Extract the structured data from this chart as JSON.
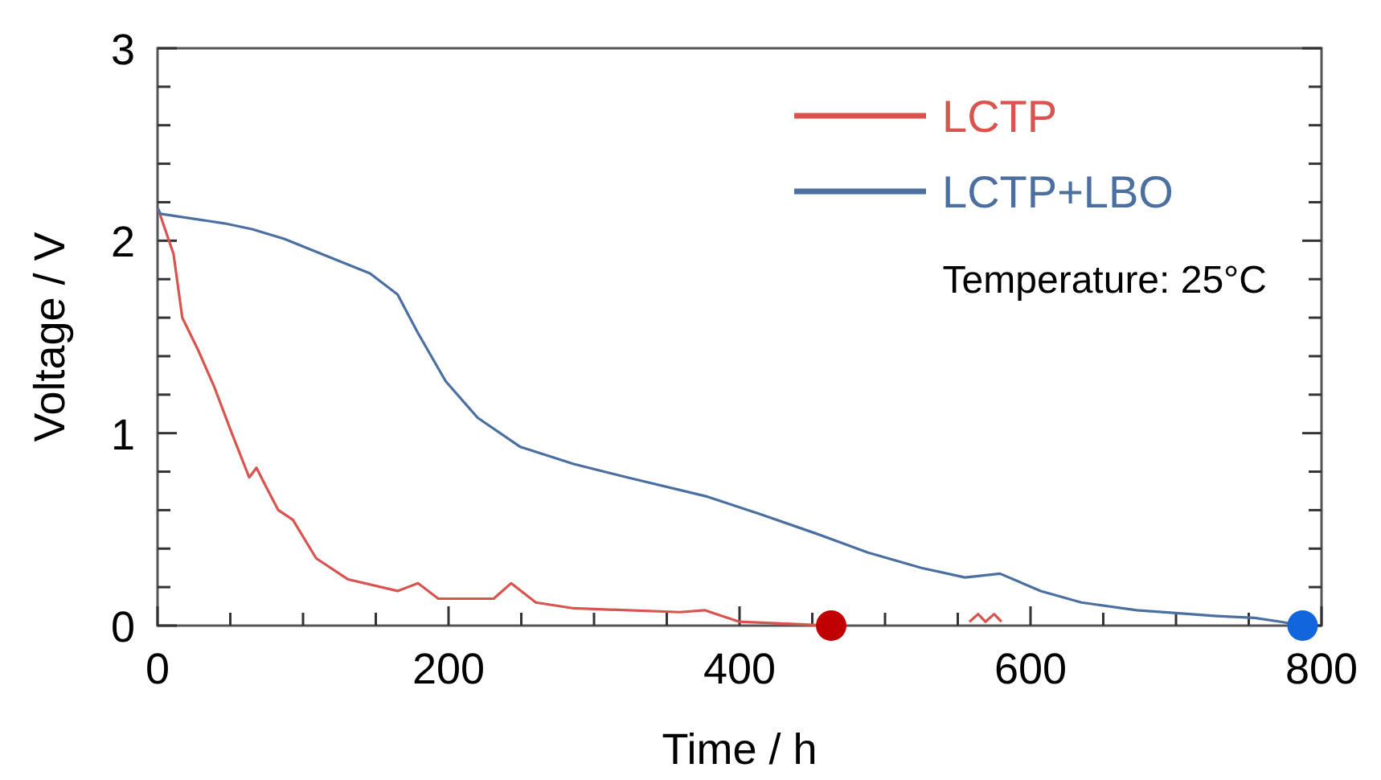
{
  "chart_data": {
    "type": "line",
    "xlabel": "Time / h",
    "ylabel": "Voltage / V",
    "xlim": [
      0,
      800
    ],
    "ylim": [
      0,
      3
    ],
    "xticks": [
      0,
      {
        "value": 50,
        "label": null
      },
      {
        "value": 100,
        "label": null
      },
      {
        "value": 150,
        "label": null
      },
      200,
      {
        "value": 250,
        "label": null
      },
      {
        "value": 300,
        "label": null
      },
      {
        "value": 350,
        "label": null
      },
      400,
      {
        "value": 450,
        "label": null
      },
      {
        "value": 500,
        "label": null
      },
      {
        "value": 550,
        "label": null
      },
      600,
      {
        "value": 650,
        "label": null
      },
      {
        "value": 700,
        "label": null
      },
      {
        "value": 750,
        "label": null
      },
      800
    ],
    "yticks": [
      0,
      {
        "value": 0.2,
        "label": null
      },
      {
        "value": 0.4,
        "label": null
      },
      {
        "value": 0.6,
        "label": null
      },
      {
        "value": 0.8,
        "label": null
      },
      1,
      {
        "value": 1.2,
        "label": null
      },
      {
        "value": 1.4,
        "label": null
      },
      {
        "value": 1.6,
        "label": null
      },
      {
        "value": 1.8,
        "label": null
      },
      2,
      {
        "value": 2.2,
        "label": null
      },
      {
        "value": 2.4,
        "label": null
      },
      {
        "value": 2.6,
        "label": null
      },
      {
        "value": 2.8,
        "label": null
      },
      3
    ],
    "grid": false,
    "legend": "top right",
    "marker": "none",
    "line_style": "solid",
    "annotations": [
      "Temperature: 25°C"
    ],
    "series": [
      {
        "name": "LCTP",
        "color": "#d9534f",
        "x": [
          0,
          2,
          11,
          17,
          28,
          39,
          50,
          63,
          68,
          74,
          83,
          93,
          109,
          131,
          165,
          179,
          193,
          231,
          243,
          260,
          286,
          359,
          376,
          400,
          463
        ],
        "values": [
          2.17,
          2.13,
          1.93,
          1.6,
          1.43,
          1.24,
          1.02,
          0.77,
          0.82,
          0.73,
          0.6,
          0.55,
          0.35,
          0.24,
          0.18,
          0.22,
          0.14,
          0.14,
          0.22,
          0.12,
          0.09,
          0.07,
          0.08,
          0.02,
          0
        ]
      },
      {
        "color": "#d9534f",
        "x": [
          558,
          564,
          569,
          575,
          580
        ],
        "values": [
          0.02,
          0.06,
          0.02,
          0.06,
          0.02
        ]
      },
      {
        "name": "LCTP+LBO",
        "color": "#4a6fa0",
        "x": [
          0,
          2,
          46,
          65,
          87,
          113,
          146,
          165,
          179,
          198,
          220,
          249,
          286,
          323,
          378,
          414,
          452,
          488,
          525,
          555,
          579,
          607,
          635,
          673,
          728,
          754,
          772,
          787
        ],
        "values": [
          2.17,
          2.14,
          2.09,
          2.06,
          2.01,
          1.93,
          1.83,
          1.72,
          1.52,
          1.27,
          1.08,
          0.93,
          0.84,
          0.77,
          0.67,
          0.58,
          0.48,
          0.38,
          0.3,
          0.25,
          0.27,
          0.18,
          0.12,
          0.08,
          0.05,
          0.04,
          0.02,
          0
        ]
      },
      {
        "type": "scatter",
        "color": "#c00000",
        "x": [
          463
        ],
        "values": [
          0
        ],
        "marker": "circle"
      },
      {
        "type": "scatter",
        "color": "#1166dd",
        "x": [
          787
        ],
        "values": [
          0
        ],
        "marker": "circle"
      }
    ]
  }
}
